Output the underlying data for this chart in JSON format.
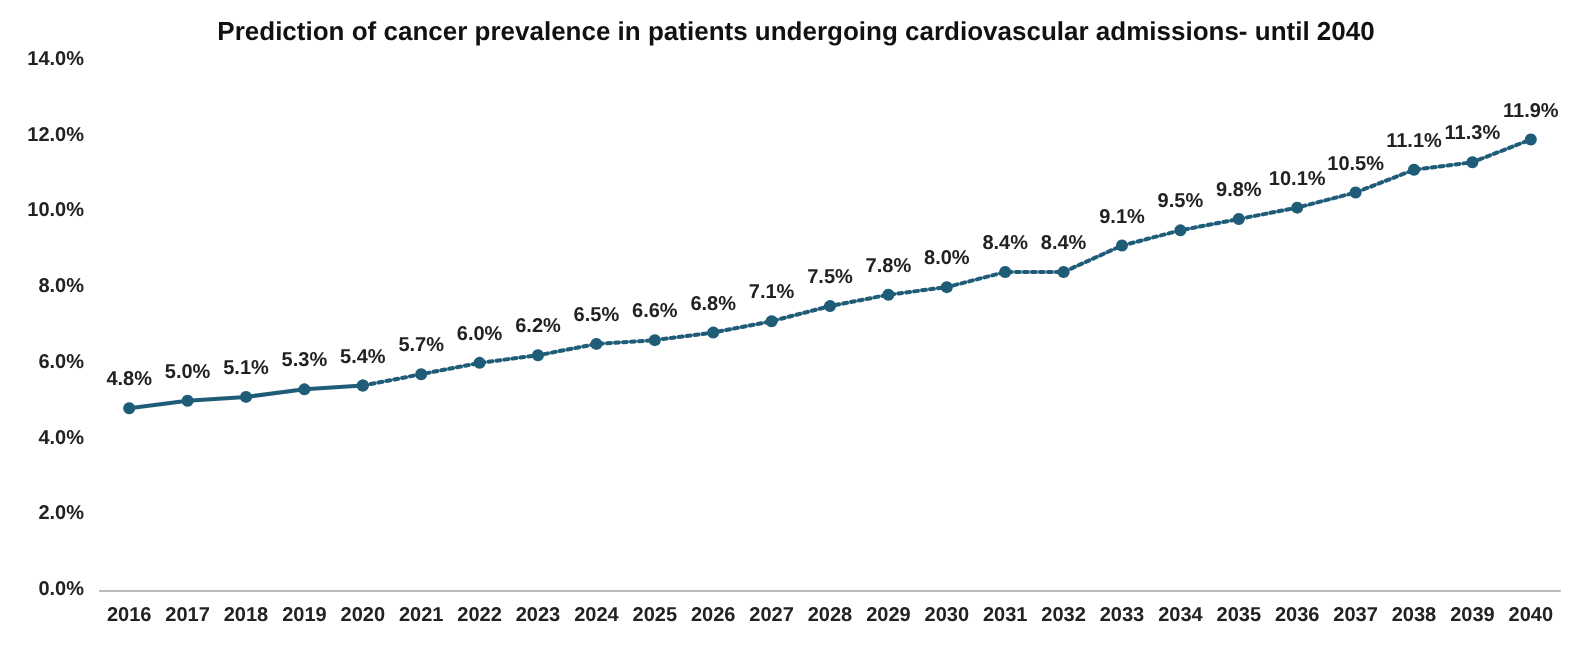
{
  "chart_data": {
    "type": "line",
    "title": "Prediction of cancer prevalence in patients undergoing cardiovascular admissions- until 2040",
    "categories": [
      "2016",
      "2017",
      "2018",
      "2019",
      "2020",
      "2021",
      "2022",
      "2023",
      "2024",
      "2025",
      "2026",
      "2027",
      "2028",
      "2029",
      "2030",
      "2031",
      "2032",
      "2033",
      "2034",
      "2035",
      "2036",
      "2037",
      "2038",
      "2039",
      "2040"
    ],
    "series": [
      {
        "color": "#1f5c78",
        "line_style": "solid",
        "values": [
          4.8,
          5.0,
          5.1,
          5.3,
          5.4,
          null,
          null,
          null,
          null,
          null,
          null,
          null,
          null,
          null,
          null,
          null,
          null,
          null,
          null,
          null,
          null,
          null,
          null,
          null,
          null
        ],
        "value_labels": [
          "4.8%",
          "5.0%",
          "5.1%",
          "5.3%",
          "5.4%",
          null,
          null,
          null,
          null,
          null,
          null,
          null,
          null,
          null,
          null,
          null,
          null,
          null,
          null,
          null,
          null,
          null,
          null,
          null,
          null
        ]
      },
      {
        "color": "#1f5c78",
        "line_style": "dotted",
        "values": [
          null,
          null,
          null,
          null,
          5.4,
          5.7,
          6.0,
          6.2,
          6.5,
          6.6,
          6.8,
          7.1,
          7.5,
          7.8,
          8.0,
          8.4,
          8.4,
          9.1,
          9.5,
          9.8,
          10.1,
          10.5,
          11.1,
          11.3,
          11.9
        ],
        "value_labels": [
          null,
          null,
          null,
          null,
          null,
          "5.7%",
          "6.0%",
          "6.2%",
          "6.5%",
          "6.6%",
          "6.8%",
          "7.1%",
          "7.5%",
          "7.8%",
          "8.0%",
          "8.4%",
          "8.4%",
          "9.1%",
          "9.5%",
          "9.8%",
          "10.1%",
          "10.5%",
          "11.1%",
          "11.3%",
          "11.9%"
        ]
      }
    ],
    "ylim": [
      0,
      14
    ],
    "yticks": [
      {
        "value": 0,
        "label": "0.0%"
      },
      {
        "value": 2,
        "label": "2.0%"
      },
      {
        "value": 4,
        "label": "4.0%"
      },
      {
        "value": 6,
        "label": "6.0%"
      },
      {
        "value": 8,
        "label": "8.0%"
      },
      {
        "value": 10,
        "label": "10.0%"
      },
      {
        "value": 12,
        "label": "12.0%"
      },
      {
        "value": 14,
        "label": "14.0%"
      }
    ],
    "grid": false,
    "marker": "circle"
  }
}
